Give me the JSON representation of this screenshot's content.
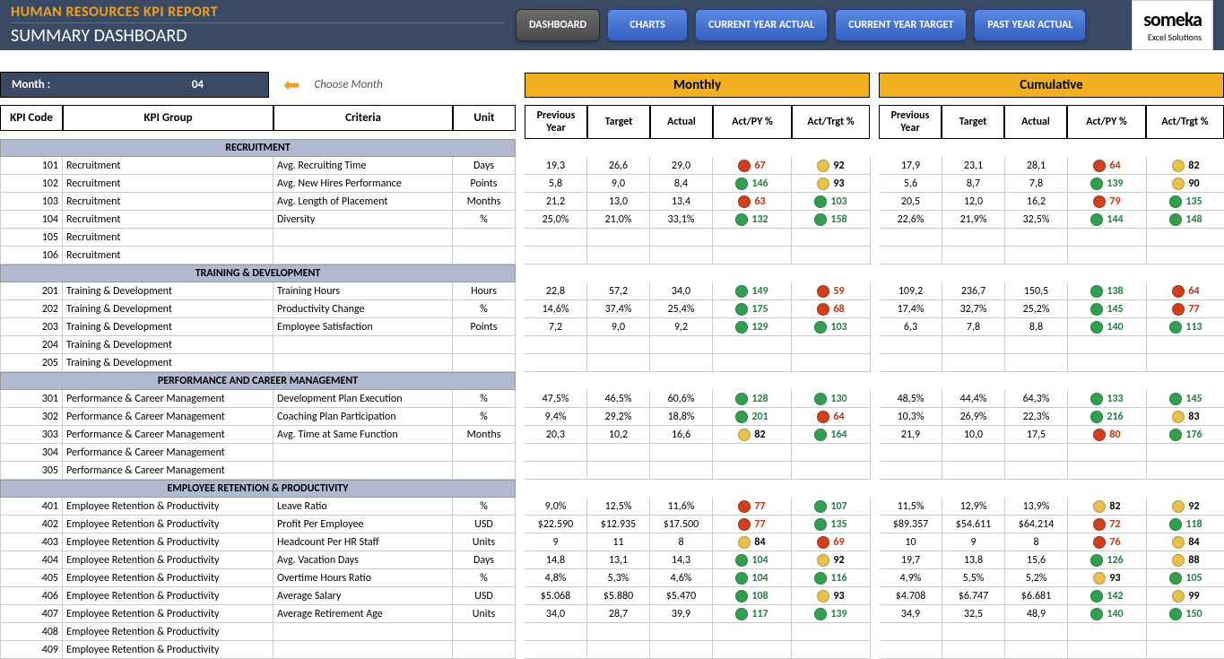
{
  "header": {
    "title": "HUMAN RESOURCES KPI REPORT",
    "subtitle": "SUMMARY DASHBOARD"
  },
  "nav": {
    "dashboard": "DASHBOARD",
    "charts": "CHARTS",
    "cy_actual": "CURRENT YEAR ACTUAL",
    "cy_target": "CURRENT YEAR TARGET",
    "py_actual": "PAST YEAR ACTUAL"
  },
  "logo": {
    "main": "someka",
    "sub": "Excel Solutions"
  },
  "month": {
    "label": "Month :",
    "value": "04",
    "hint": "Choose Month"
  },
  "section_headers": {
    "monthly": "Monthly",
    "cumulative": "Cumulative"
  },
  "col_labels": {
    "kpi_code": "KPI Code",
    "kpi_group": "KPI Group",
    "criteria": "Criteria",
    "unit": "Unit",
    "prev_year": "Previous Year",
    "target": "Target",
    "actual": "Actual",
    "act_py": "Act/PY %",
    "act_trgt": "Act/Trgt %"
  },
  "groups": [
    {
      "name": "RECRUITMENT",
      "rows": [
        {
          "code": "101",
          "group": "Recruitment",
          "crit": "Avg. Recruiting Time",
          "unit": "Days",
          "m": {
            "py": "19,3",
            "tg": "26,6",
            "ac": "29,0",
            "p1": {
              "c": "red",
              "v": "67"
            },
            "p2": {
              "c": "yellow",
              "v": "92"
            }
          },
          "c": {
            "py": "17,9",
            "tg": "23,1",
            "ac": "28,1",
            "p1": {
              "c": "red",
              "v": "64"
            },
            "p2": {
              "c": "yellow",
              "v": "82"
            }
          }
        },
        {
          "code": "102",
          "group": "Recruitment",
          "crit": "Avg. New Hires Performance",
          "unit": "Points",
          "m": {
            "py": "5,8",
            "tg": "9,0",
            "ac": "8,4",
            "p1": {
              "c": "green",
              "v": "146"
            },
            "p2": {
              "c": "yellow",
              "v": "93"
            }
          },
          "c": {
            "py": "5,6",
            "tg": "8,7",
            "ac": "7,8",
            "p1": {
              "c": "green",
              "v": "139"
            },
            "p2": {
              "c": "yellow",
              "v": "90"
            }
          }
        },
        {
          "code": "103",
          "group": "Recruitment",
          "crit": "Avg. Length of Placement",
          "unit": "Months",
          "m": {
            "py": "21,2",
            "tg": "13,0",
            "ac": "13,4",
            "p1": {
              "c": "red",
              "v": "63"
            },
            "p2": {
              "c": "green",
              "v": "103"
            }
          },
          "c": {
            "py": "20,5",
            "tg": "12,0",
            "ac": "16,2",
            "p1": {
              "c": "red",
              "v": "79"
            },
            "p2": {
              "c": "green",
              "v": "135"
            }
          }
        },
        {
          "code": "104",
          "group": "Recruitment",
          "crit": "Diversity",
          "unit": "%",
          "m": {
            "py": "25,0%",
            "tg": "21,0%",
            "ac": "33,1%",
            "p1": {
              "c": "green",
              "v": "132"
            },
            "p2": {
              "c": "green",
              "v": "158"
            }
          },
          "c": {
            "py": "22,6%",
            "tg": "21,9%",
            "ac": "32,5%",
            "p1": {
              "c": "green",
              "v": "144"
            },
            "p2": {
              "c": "green",
              "v": "148"
            }
          }
        },
        {
          "code": "105",
          "group": "Recruitment",
          "crit": "",
          "unit": ""
        },
        {
          "code": "106",
          "group": "Recruitment",
          "crit": "",
          "unit": ""
        }
      ]
    },
    {
      "name": "TRAINING & DEVELOPMENT",
      "rows": [
        {
          "code": "201",
          "group": "Training & Development",
          "crit": "Training Hours",
          "unit": "Hours",
          "m": {
            "py": "22,8",
            "tg": "57,2",
            "ac": "34,0",
            "p1": {
              "c": "green",
              "v": "149"
            },
            "p2": {
              "c": "red",
              "v": "59"
            }
          },
          "c": {
            "py": "109,2",
            "tg": "236,7",
            "ac": "150,5",
            "p1": {
              "c": "green",
              "v": "138"
            },
            "p2": {
              "c": "red",
              "v": "64"
            }
          }
        },
        {
          "code": "202",
          "group": "Training & Development",
          "crit": "Productivity Change",
          "unit": "%",
          "m": {
            "py": "14,6%",
            "tg": "37,4%",
            "ac": "25,4%",
            "p1": {
              "c": "green",
              "v": "175"
            },
            "p2": {
              "c": "red",
              "v": "68"
            }
          },
          "c": {
            "py": "17,4%",
            "tg": "32,7%",
            "ac": "25,2%",
            "p1": {
              "c": "green",
              "v": "145"
            },
            "p2": {
              "c": "red",
              "v": "77"
            }
          }
        },
        {
          "code": "203",
          "group": "Training & Development",
          "crit": "Employee Satisfaction",
          "unit": "Points",
          "m": {
            "py": "7,2",
            "tg": "9,0",
            "ac": "9,2",
            "p1": {
              "c": "green",
              "v": "129"
            },
            "p2": {
              "c": "green",
              "v": "103"
            }
          },
          "c": {
            "py": "6,3",
            "tg": "7,8",
            "ac": "8,8",
            "p1": {
              "c": "green",
              "v": "140"
            },
            "p2": {
              "c": "green",
              "v": "113"
            }
          }
        },
        {
          "code": "204",
          "group": "Training & Development",
          "crit": "",
          "unit": ""
        },
        {
          "code": "205",
          "group": "Training & Development",
          "crit": "",
          "unit": ""
        }
      ]
    },
    {
      "name": "PERFORMANCE AND CAREER MANAGEMENT",
      "rows": [
        {
          "code": "301",
          "group": "Performance & Career Management",
          "crit": "Development Plan Execution",
          "unit": "%",
          "m": {
            "py": "47,5%",
            "tg": "46,5%",
            "ac": "60,6%",
            "p1": {
              "c": "green",
              "v": "128"
            },
            "p2": {
              "c": "green",
              "v": "130"
            }
          },
          "c": {
            "py": "48,5%",
            "tg": "44,4%",
            "ac": "64,3%",
            "p1": {
              "c": "green",
              "v": "133"
            },
            "p2": {
              "c": "green",
              "v": "145"
            }
          }
        },
        {
          "code": "302",
          "group": "Performance & Career Management",
          "crit": "Coaching Plan Participation",
          "unit": "%",
          "m": {
            "py": "9,4%",
            "tg": "29,2%",
            "ac": "18,8%",
            "p1": {
              "c": "green",
              "v": "201"
            },
            "p2": {
              "c": "red",
              "v": "64"
            }
          },
          "c": {
            "py": "10,3%",
            "tg": "26,9%",
            "ac": "22,3%",
            "p1": {
              "c": "green",
              "v": "216"
            },
            "p2": {
              "c": "yellow",
              "v": "83"
            }
          }
        },
        {
          "code": "303",
          "group": "Performance & Career Management",
          "crit": "Avg. Time at Same Function",
          "unit": "Months",
          "m": {
            "py": "20,3",
            "tg": "10,2",
            "ac": "16,6",
            "p1": {
              "c": "yellow",
              "v": "82"
            },
            "p2": {
              "c": "green",
              "v": "164"
            }
          },
          "c": {
            "py": "21,9",
            "tg": "10,0",
            "ac": "17,5",
            "p1": {
              "c": "red",
              "v": "80"
            },
            "p2": {
              "c": "green",
              "v": "176"
            }
          }
        },
        {
          "code": "304",
          "group": "Performance & Career Management",
          "crit": "",
          "unit": ""
        },
        {
          "code": "305",
          "group": "Performance & Career Management",
          "crit": "",
          "unit": ""
        }
      ]
    },
    {
      "name": "EMPLOYEE RETENTION & PRODUCTIVITY",
      "rows": [
        {
          "code": "401",
          "group": "Employee Retention & Productivity",
          "crit": "Leave Ratio",
          "unit": "%",
          "m": {
            "py": "9,0%",
            "tg": "12,5%",
            "ac": "11,6%",
            "p1": {
              "c": "red",
              "v": "77"
            },
            "p2": {
              "c": "green",
              "v": "107"
            }
          },
          "c": {
            "py": "11,5%",
            "tg": "12,9%",
            "ac": "13,9%",
            "p1": {
              "c": "yellow",
              "v": "82"
            },
            "p2": {
              "c": "yellow",
              "v": "92"
            }
          }
        },
        {
          "code": "402",
          "group": "Employee Retention & Productivity",
          "crit": "Profit Per Employee",
          "unit": "USD",
          "m": {
            "py": "$22.590",
            "tg": "$12.935",
            "ac": "$17.500",
            "p1": {
              "c": "red",
              "v": "77"
            },
            "p2": {
              "c": "green",
              "v": "135"
            }
          },
          "c": {
            "py": "$89.357",
            "tg": "$54.611",
            "ac": "$64.214",
            "p1": {
              "c": "red",
              "v": "72"
            },
            "p2": {
              "c": "green",
              "v": "118"
            }
          }
        },
        {
          "code": "403",
          "group": "Employee Retention & Productivity",
          "crit": "Headcount Per HR Staff",
          "unit": "Units",
          "m": {
            "py": "9",
            "tg": "11",
            "ac": "8",
            "p1": {
              "c": "yellow",
              "v": "84"
            },
            "p2": {
              "c": "red",
              "v": "69"
            }
          },
          "c": {
            "py": "10",
            "tg": "9",
            "ac": "8",
            "p1": {
              "c": "red",
              "v": "76"
            },
            "p2": {
              "c": "yellow",
              "v": "84"
            }
          }
        },
        {
          "code": "404",
          "group": "Employee Retention & Productivity",
          "crit": "Avg. Vacation Days",
          "unit": "Days",
          "m": {
            "py": "14,8",
            "tg": "13,1",
            "ac": "14,3",
            "p1": {
              "c": "green",
              "v": "104"
            },
            "p2": {
              "c": "yellow",
              "v": "92"
            }
          },
          "c": {
            "py": "19,7",
            "tg": "13,8",
            "ac": "15,6",
            "p1": {
              "c": "green",
              "v": "126"
            },
            "p2": {
              "c": "yellow",
              "v": "88"
            }
          }
        },
        {
          "code": "405",
          "group": "Employee Retention & Productivity",
          "crit": "Overtime Hours Ratio",
          "unit": "%",
          "m": {
            "py": "4,8%",
            "tg": "5,3%",
            "ac": "4,6%",
            "p1": {
              "c": "green",
              "v": "104"
            },
            "p2": {
              "c": "green",
              "v": "116"
            }
          },
          "c": {
            "py": "4,9%",
            "tg": "5,5%",
            "ac": "5,2%",
            "p1": {
              "c": "yellow",
              "v": "93"
            },
            "p2": {
              "c": "green",
              "v": "105"
            }
          }
        },
        {
          "code": "406",
          "group": "Employee Retention & Productivity",
          "crit": "Average Salary",
          "unit": "USD",
          "m": {
            "py": "$5.068",
            "tg": "$5.880",
            "ac": "$5.470",
            "p1": {
              "c": "green",
              "v": "108"
            },
            "p2": {
              "c": "yellow",
              "v": "93"
            }
          },
          "c": {
            "py": "$4.708",
            "tg": "$6.747",
            "ac": "$6.681",
            "p1": {
              "c": "green",
              "v": "142"
            },
            "p2": {
              "c": "yellow",
              "v": "99"
            }
          }
        },
        {
          "code": "407",
          "group": "Employee Retention & Productivity",
          "crit": "Average Retirement Age",
          "unit": "Units",
          "m": {
            "py": "34,0",
            "tg": "28,7",
            "ac": "39,9",
            "p1": {
              "c": "green",
              "v": "117"
            },
            "p2": {
              "c": "green",
              "v": "139"
            }
          },
          "c": {
            "py": "34,9",
            "tg": "32,5",
            "ac": "48,9",
            "p1": {
              "c": "green",
              "v": "140"
            },
            "p2": {
              "c": "green",
              "v": "150"
            }
          }
        },
        {
          "code": "408",
          "group": "Employee Retention & Productivity",
          "crit": "",
          "unit": ""
        },
        {
          "code": "409",
          "group": "Employee Retention & Productivity",
          "crit": "",
          "unit": ""
        }
      ]
    }
  ]
}
